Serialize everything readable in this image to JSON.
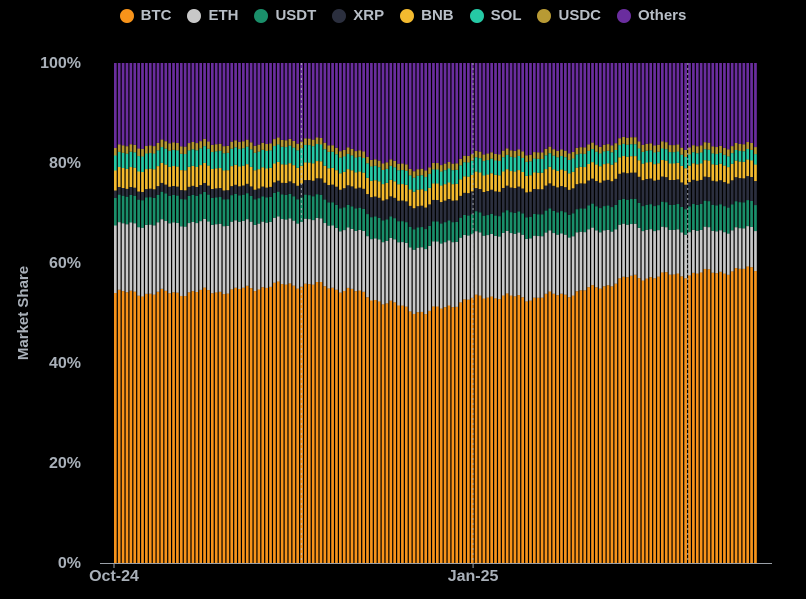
{
  "chart_data": {
    "type": "bar",
    "stacked": true,
    "ylabel": "Market Share",
    "xlabel": "",
    "y_ticks": [
      "0%",
      "20%",
      "40%",
      "60%",
      "80%",
      "100%"
    ],
    "ylim": [
      0,
      100
    ],
    "x_tick_labels": [
      {
        "label": "Oct-24",
        "date": "2024-10-01"
      },
      {
        "label": "Jan-25",
        "date": "2025-01-01"
      }
    ],
    "x_range": [
      "2024-10-01",
      "2025-03-15"
    ],
    "vertical_markers": [
      "2024-11-18",
      "2025-01-01",
      "2025-02-25"
    ],
    "legend_position": "top-center",
    "grid": false,
    "dates": [
      "2024-10-01",
      "2024-10-15",
      "2024-11-01",
      "2024-11-10",
      "2024-11-20",
      "2024-12-01",
      "2024-12-10",
      "2024-12-20",
      "2024-12-28",
      "2025-01-05",
      "2025-01-15",
      "2025-01-25",
      "2025-02-01",
      "2025-02-10",
      "2025-02-20",
      "2025-03-01",
      "2025-03-15"
    ],
    "series": [
      {
        "name": "BTC",
        "color": "#f7931a",
        "values": [
          54,
          54,
          54.5,
          55.5,
          55.8,
          54.5,
          52,
          50,
          52,
          53.5,
          53,
          53.8,
          54.8,
          57,
          57.5,
          58,
          58.8
        ]
      },
      {
        "name": "ETH",
        "color": "#c8c8c8",
        "values": [
          13.5,
          14,
          13.5,
          13,
          13,
          12,
          12.5,
          13,
          13,
          12.5,
          12.5,
          12,
          11.5,
          10.5,
          9,
          8.5,
          8
        ]
      },
      {
        "name": "USDT",
        "color": "#1a8f6a",
        "values": [
          5.5,
          5.5,
          5.3,
          5.0,
          4.8,
          4.5,
          4.3,
          4.0,
          4.0,
          4.0,
          4.3,
          4.5,
          4.8,
          5.0,
          5.0,
          5.2,
          5.2
        ]
      },
      {
        "name": "XRP",
        "color": "#2b2f3e",
        "values": [
          1.5,
          1.8,
          1.8,
          2.0,
          3.0,
          4.0,
          4.0,
          4.3,
          4.3,
          4.8,
          5.0,
          5.0,
          5.0,
          5.3,
          5.0,
          4.8,
          4.8
        ]
      },
      {
        "name": "BNB",
        "color": "#f3ba2f",
        "values": [
          4.0,
          4.0,
          4.0,
          3.8,
          3.5,
          3.2,
          3.3,
          3.3,
          3.3,
          3.3,
          3.3,
          3.3,
          3.3,
          3.3,
          3.3,
          3.3,
          3.3
        ]
      },
      {
        "name": "SOL",
        "color": "#25c9a5",
        "values": [
          3.0,
          3.2,
          3.5,
          3.5,
          3.5,
          3.0,
          2.8,
          2.8,
          2.8,
          2.9,
          2.8,
          2.7,
          2.6,
          2.4,
          2.3,
          2.2,
          2.1
        ]
      },
      {
        "name": "USDC",
        "color": "#b89a34",
        "values": [
          1.5,
          1.5,
          1.4,
          1.4,
          1.3,
          1.3,
          1.3,
          1.3,
          1.3,
          1.3,
          1.3,
          1.3,
          1.3,
          1.4,
          1.4,
          1.4,
          1.4
        ]
      },
      {
        "name": "Others",
        "color": "#6a2d9e",
        "values": [
          17.0,
          16.0,
          16.0,
          15.8,
          15.1,
          17.5,
          19.8,
          21.3,
          19.3,
          17.7,
          17.8,
          17.4,
          16.7,
          15.1,
          16.5,
          16.6,
          16.4
        ]
      }
    ]
  }
}
